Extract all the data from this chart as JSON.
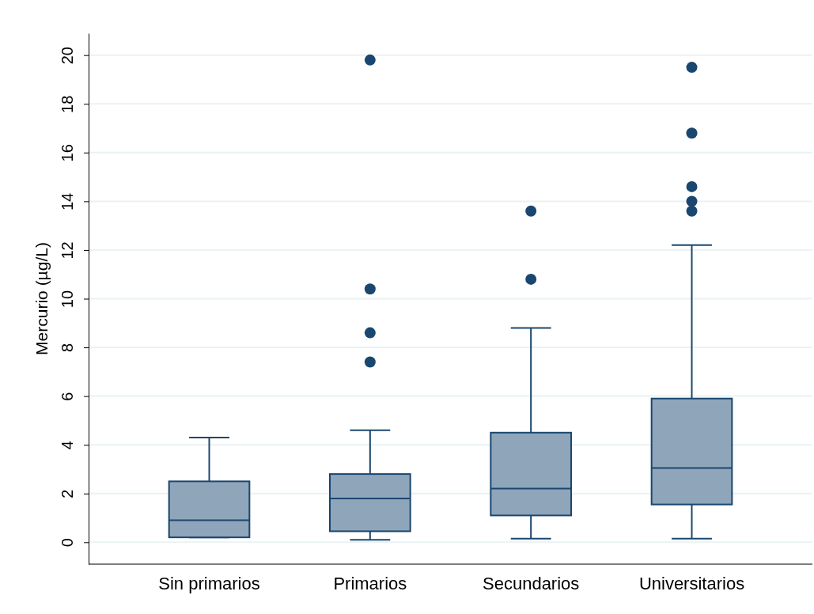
{
  "chart_data": {
    "type": "box",
    "ylabel": "Mercurio (µg/L)",
    "categories": [
      "Sin primarios",
      "Primarios",
      "Secundarios",
      "Universitarios"
    ],
    "boxes": [
      {
        "low": 0.2,
        "q1": 0.2,
        "median": 0.9,
        "q3": 2.5,
        "high": 4.3
      },
      {
        "low": 0.1,
        "q1": 0.45,
        "median": 1.8,
        "q3": 2.8,
        "high": 4.6,
        "outliers": [
          19.8,
          10.4,
          8.6,
          7.4
        ]
      },
      {
        "low": 0.15,
        "q1": 1.1,
        "median": 2.2,
        "q3": 4.5,
        "high": 8.8,
        "outliers": [
          13.6,
          10.8
        ]
      },
      {
        "low": 0.15,
        "q1": 1.55,
        "median": 3.05,
        "q3": 5.9,
        "high": 12.2,
        "outliers": [
          19.5,
          16.8,
          14.6,
          14.0,
          13.6
        ]
      }
    ],
    "color": "#8fa5b9",
    "ylim": [
      -0.9,
      20.9
    ],
    "yticks": [
      0,
      2,
      4,
      6,
      8,
      10,
      12,
      14,
      16,
      18,
      20
    ],
    "grid": "y"
  }
}
